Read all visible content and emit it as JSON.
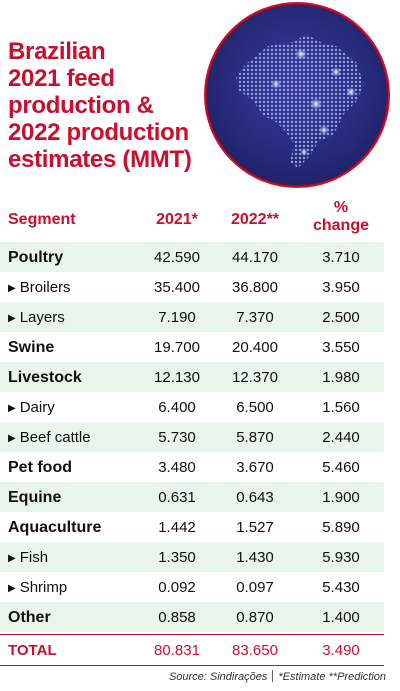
{
  "title_lines": [
    "Brazilian",
    "2021 feed",
    "production &",
    "2022 production",
    "estimates (MMT)"
  ],
  "colors": {
    "accent": "#c8102e",
    "row_shade": "#e8f4ec",
    "map_bg": "#262a7a"
  },
  "map_icon": "brazil-map-icon",
  "chart_data": {
    "type": "table",
    "title": "Brazilian 2021 feed production & 2022 production estimates (MMT)",
    "columns": [
      "Segment",
      "2021*",
      "2022**",
      "% change"
    ],
    "rows": [
      {
        "segment": "Poultry",
        "level": "main",
        "y2021": "42.590",
        "y2022": "44.170",
        "change": "3.710"
      },
      {
        "segment": "Broilers",
        "level": "sub",
        "y2021": "35.400",
        "y2022": "36.800",
        "change": "3.950"
      },
      {
        "segment": "Layers",
        "level": "sub",
        "y2021": "7.190",
        "y2022": "7.370",
        "change": "2.500"
      },
      {
        "segment": "Swine",
        "level": "main",
        "y2021": "19.700",
        "y2022": "20.400",
        "change": "3.550"
      },
      {
        "segment": "Livestock",
        "level": "main",
        "y2021": "12.130",
        "y2022": "12.370",
        "change": "1.980"
      },
      {
        "segment": "Dairy",
        "level": "sub",
        "y2021": "6.400",
        "y2022": "6.500",
        "change": "1.560"
      },
      {
        "segment": "Beef cattle",
        "level": "sub",
        "y2021": "5.730",
        "y2022": "5.870",
        "change": "2.440"
      },
      {
        "segment": "Pet food",
        "level": "main",
        "y2021": "3.480",
        "y2022": "3.670",
        "change": "5.460"
      },
      {
        "segment": "Equine",
        "level": "main",
        "y2021": "0.631",
        "y2022": "0.643",
        "change": "1.900"
      },
      {
        "segment": "Aquaculture",
        "level": "main",
        "y2021": "1.442",
        "y2022": "1.527",
        "change": "5.890"
      },
      {
        "segment": "Fish",
        "level": "sub",
        "y2021": "1.350",
        "y2022": "1.430",
        "change": "5.930"
      },
      {
        "segment": "Shrimp",
        "level": "sub",
        "y2021": "0.092",
        "y2022": "0.097",
        "change": "5.430"
      },
      {
        "segment": "Other",
        "level": "main",
        "y2021": "0.858",
        "y2022": "0.870",
        "change": "1.400"
      }
    ],
    "total": {
      "segment": "TOTAL",
      "y2021": "80.831",
      "y2022": "83.650",
      "change": "3.490"
    }
  },
  "header": {
    "segment": "Segment",
    "y2021": "2021*",
    "y2022": "2022**",
    "change_line1": "%",
    "change_line2": "change"
  },
  "source": {
    "prefix": "Source: Sindirações",
    "notes": "*Estimate **Prediction"
  }
}
